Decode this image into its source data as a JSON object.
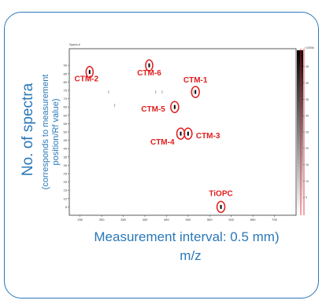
{
  "labels": {
    "y_main": "No. of spectra",
    "y_sub_1": "(corresponds to measurement",
    "y_sub_2": "position/Rf value)",
    "x_line_1": "Measurement interval: 0.5 mm)",
    "x_line_2": "m/z",
    "plot_title": "Spect-#",
    "colorbar_unit": "×1000k"
  },
  "colors": {
    "frame": "#2a78b8",
    "annotation": "#e01e1e",
    "marker": "#000000"
  },
  "chart_data": {
    "type": "scatter",
    "title": "",
    "xlabel": "Measurement interval: 0.5 mm)\nm/z",
    "ylabel": "No. of spectra (corresponds to measurement position/Rf value)",
    "xlim": [
      225,
      750
    ],
    "ylim": [
      0,
      100
    ],
    "x_ticks": [
      250,
      300,
      350,
      400,
      450,
      500,
      550,
      600,
      650,
      700
    ],
    "y_ticks": [
      5,
      10,
      15,
      20,
      25,
      30,
      35,
      40,
      45,
      50,
      55,
      60,
      65,
      70,
      75,
      80,
      85,
      90
    ],
    "colorbar_ticks": [
      5,
      10,
      15,
      20,
      25,
      30,
      35,
      40,
      45
    ],
    "grid": false,
    "points": [
      {
        "name": "CTM-2",
        "x": 272,
        "y": 86
      },
      {
        "name": "CTM-6",
        "x": 410,
        "y": 90
      },
      {
        "name": "CTM-1",
        "x": 517,
        "y": 74
      },
      {
        "name": "CTM-5",
        "x": 469,
        "y": 65
      },
      {
        "name": "CTM-4",
        "x": 483,
        "y": 49
      },
      {
        "name": "CTM-3",
        "x": 500,
        "y": 49
      },
      {
        "name": "TiOPC",
        "x": 576,
        "y": 5
      }
    ],
    "faint_marks": [
      {
        "x": 316,
        "y": 74
      },
      {
        "x": 330,
        "y": 66
      },
      {
        "x": 425,
        "y": 74
      },
      {
        "x": 440,
        "y": 74
      },
      {
        "x": 512,
        "y": 74
      }
    ]
  }
}
